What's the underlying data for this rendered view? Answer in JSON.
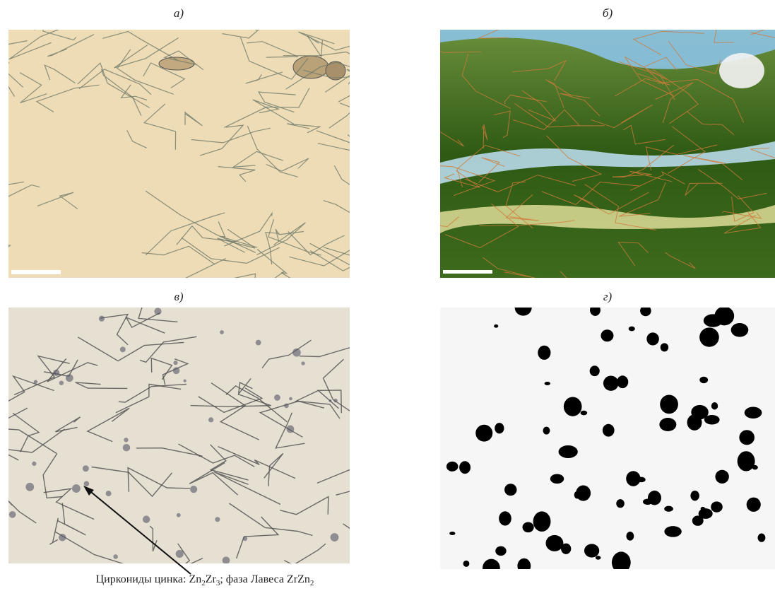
{
  "panels": [
    {
      "label": "а)"
    },
    {
      "label": "б)"
    },
    {
      "label": "в)"
    },
    {
      "label": "г)"
    }
  ],
  "caption": {
    "parts": [
      "Циркониды цинка: Zn",
      "2",
      "Zr",
      "3",
      "; фаза Лавеса ZrZn",
      "2"
    ]
  }
}
